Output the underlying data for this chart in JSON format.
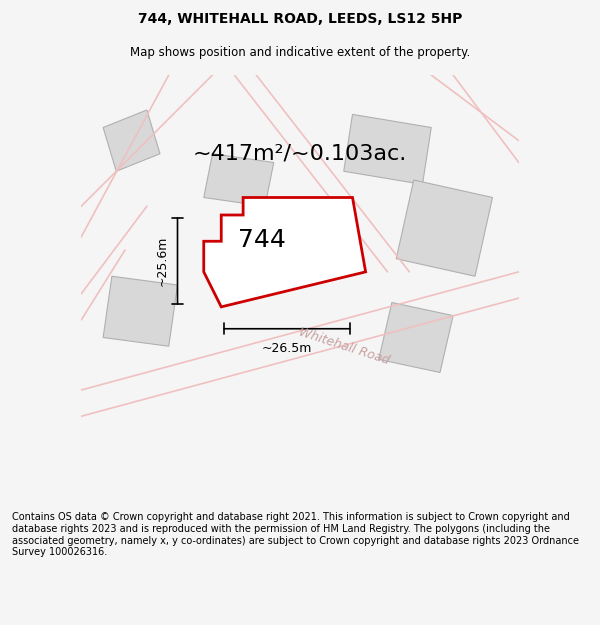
{
  "title": "744, WHITEHALL ROAD, LEEDS, LS12 5HP",
  "subtitle": "Map shows position and indicative extent of the property.",
  "area_text": "~417m²/~0.103ac.",
  "label_744": "744",
  "dim_vertical": "~25.6m",
  "dim_horizontal": "~26.5m",
  "road_label": "Whitehall Road",
  "footer": "Contains OS data © Crown copyright and database right 2021. This information is subject to Crown copyright and database rights 2023 and is reproduced with the permission of HM Land Registry. The polygons (including the associated geometry, namely x, y co-ordinates) are subject to Crown copyright and database rights 2023 Ordnance Survey 100026316.",
  "bg_color": "#f5f5f5",
  "map_bg": "#ffffff",
  "plot_fill": "#ffffff",
  "plot_edge": "#cc0000",
  "road_color": "#f0c0c0",
  "building_fill": "#d8d8d8",
  "building_edge": "#b0b0b0",
  "dim_color": "#000000",
  "title_fontsize": 10,
  "subtitle_fontsize": 8.5,
  "area_fontsize": 16,
  "label_fontsize": 18,
  "footer_fontsize": 7
}
